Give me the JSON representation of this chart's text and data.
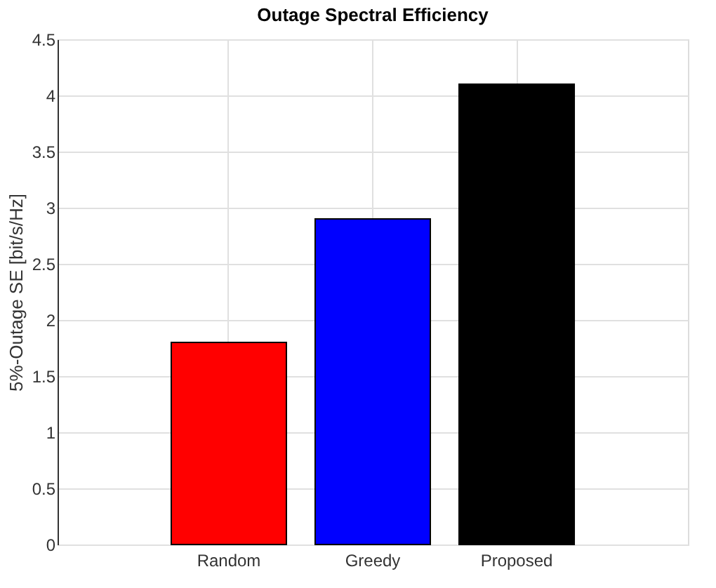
{
  "chart_data": {
    "type": "bar",
    "title": "Outage Spectral Efficiency",
    "ylabel": "5%-Outage SE [bit/s/Hz]",
    "categories": [
      "Random",
      "Greedy",
      "Proposed"
    ],
    "values": [
      1.8,
      2.9,
      4.1
    ],
    "colors": [
      "#ff0000",
      "#0000ff",
      "#000000"
    ],
    "ylim": [
      0,
      4.5
    ],
    "yticks": [
      0,
      0.5,
      1,
      1.5,
      2,
      2.5,
      3,
      3.5,
      4,
      4.5
    ],
    "grid": true
  }
}
